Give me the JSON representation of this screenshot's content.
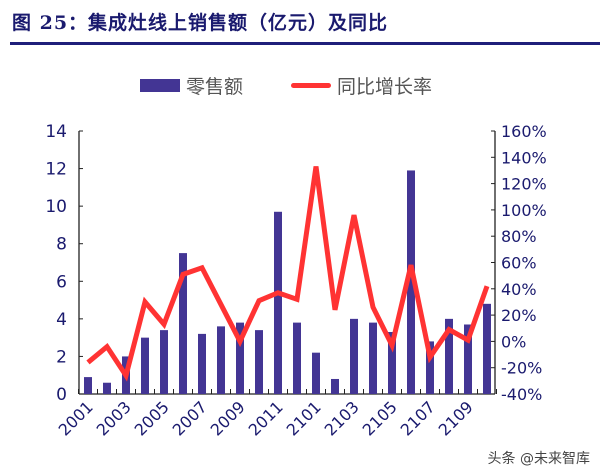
{
  "header": {
    "title": "图 25：集成灶线上销售额（亿元）及同比"
  },
  "watermark": "头条 @未来智库",
  "chart_data": {
    "type": "bar+line",
    "categories": [
      "2001",
      "2002",
      "2003",
      "2004",
      "2005",
      "2006",
      "2007",
      "2008",
      "2009",
      "2010",
      "2011",
      "2012",
      "2101",
      "2102",
      "2103",
      "2104",
      "2105",
      "2106",
      "2107",
      "2108",
      "2109",
      "2110"
    ],
    "x_tick_labels": [
      "2001",
      "2003",
      "2005",
      "2007",
      "2009",
      "2011",
      "2101",
      "2103",
      "2105",
      "2107",
      "2109"
    ],
    "series": [
      {
        "name": "零售额",
        "type": "bar",
        "axis": "left",
        "color": "#433594",
        "values": [
          0.9,
          0.6,
          2.0,
          3.0,
          3.4,
          7.5,
          3.2,
          3.6,
          3.8,
          3.4,
          9.7,
          3.8,
          2.2,
          0.8,
          4.0,
          3.8,
          3.3,
          11.9,
          2.8,
          4.0,
          3.7,
          4.8
        ]
      },
      {
        "name": "同比增长率",
        "type": "line",
        "axis": "right",
        "color": "#ff3333",
        "values": [
          -16,
          -4,
          -26,
          30,
          13,
          51,
          56,
          28,
          0,
          31,
          37,
          32,
          133,
          24,
          96,
          26,
          -3,
          58,
          -12,
          9,
          1,
          42
        ]
      }
    ],
    "left_axis": {
      "ylim": [
        0,
        14
      ],
      "ticks": [
        "0",
        "2",
        "4",
        "6",
        "8",
        "10",
        "12",
        "14"
      ]
    },
    "right_axis": {
      "ylim": [
        -40,
        160
      ],
      "ticks": [
        "-40%",
        "-20%",
        "0%",
        "20%",
        "40%",
        "60%",
        "80%",
        "100%",
        "120%",
        "140%",
        "160%"
      ]
    },
    "legend": "top",
    "grid": false
  }
}
